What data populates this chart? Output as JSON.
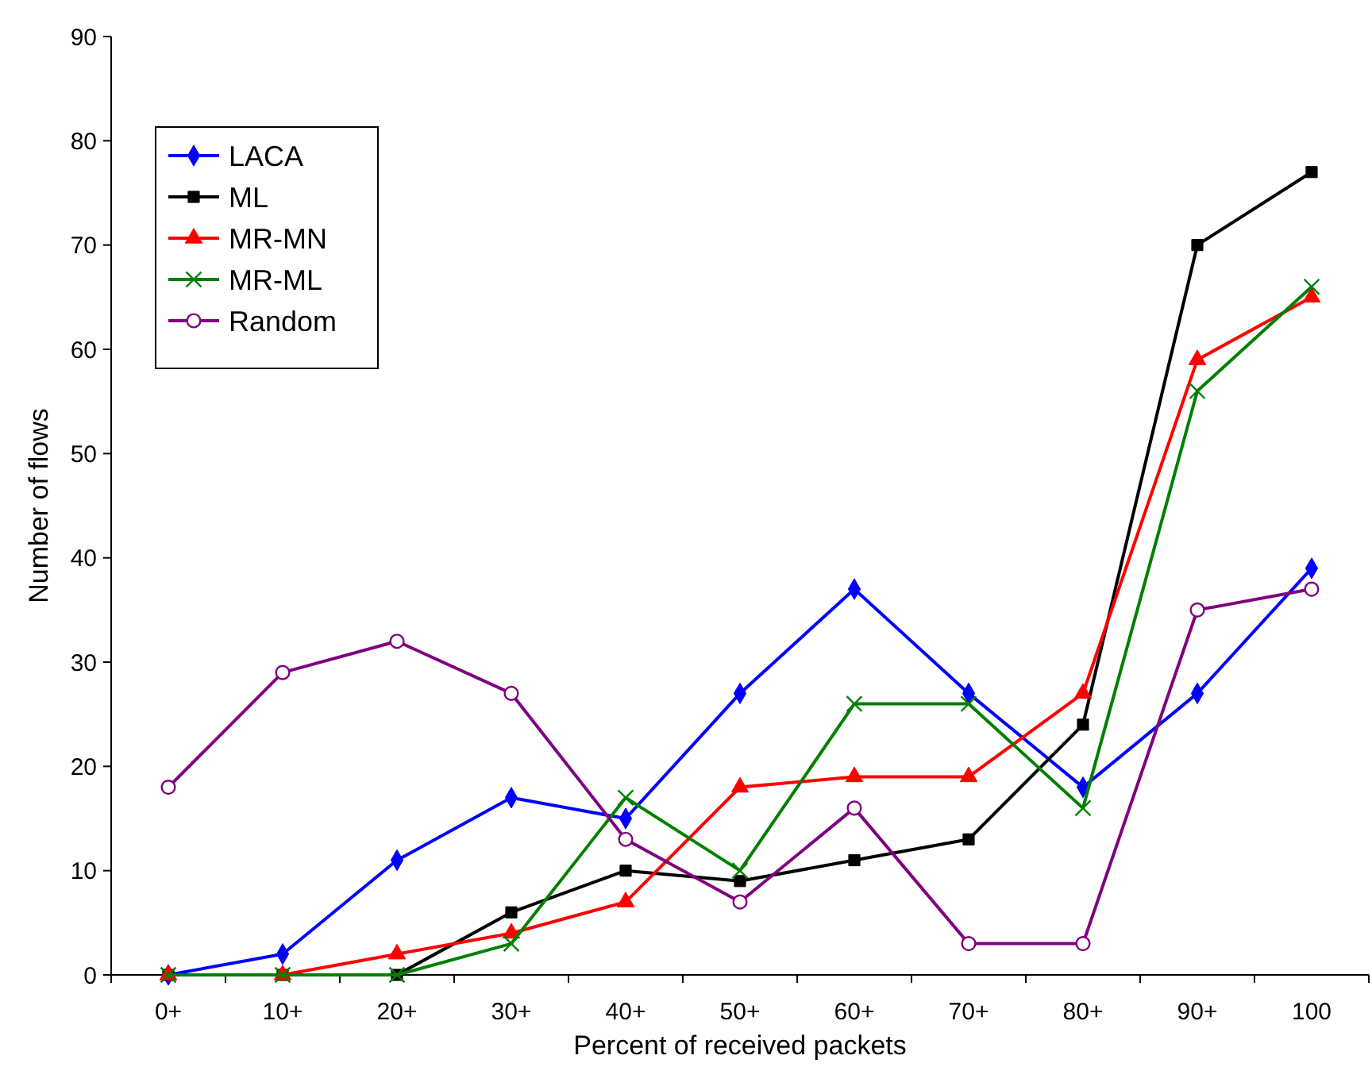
{
  "chart_data": {
    "type": "line",
    "xlabel": "Percent of received packets",
    "ylabel": "Number of flows",
    "categories": [
      "0+",
      "10+",
      "20+",
      "30+",
      "40+",
      "50+",
      "60+",
      "70+",
      "80+",
      "90+",
      "100"
    ],
    "ylim": [
      0,
      90
    ],
    "yticks": [
      0,
      10,
      20,
      30,
      40,
      50,
      60,
      70,
      80,
      90
    ],
    "grid": false,
    "legend": "top left",
    "line_style": "solid",
    "series": [
      {
        "name": "LACA",
        "color": "#0000ff",
        "marker": "diamond",
        "values": [
          0,
          2,
          11,
          17,
          15,
          27,
          37,
          27,
          18,
          27,
          39
        ]
      },
      {
        "name": "ML",
        "color": "#000000",
        "marker": "square",
        "values": [
          0,
          0,
          0,
          6,
          10,
          9,
          11,
          13,
          24,
          70,
          77
        ]
      },
      {
        "name": "MR-MN",
        "color": "#ff0000",
        "marker": "triangle",
        "values": [
          0,
          0,
          2,
          4,
          7,
          18,
          19,
          19,
          27,
          59,
          65
        ]
      },
      {
        "name": "MR-ML",
        "color": "#008000",
        "marker": "cross",
        "values": [
          0,
          0,
          0,
          3,
          17,
          10,
          26,
          26,
          16,
          56,
          66
        ]
      },
      {
        "name": "Random",
        "color": "#800080",
        "marker": "circle",
        "values": [
          18,
          29,
          32,
          27,
          13,
          7,
          16,
          3,
          3,
          35,
          37
        ]
      }
    ]
  }
}
